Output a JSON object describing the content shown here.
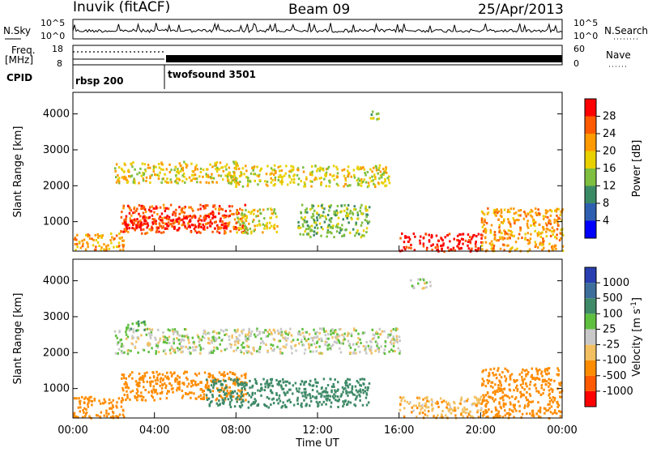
{
  "header": {
    "station": "Inuvik (fitACF)",
    "beam": "Beam 09",
    "date": "25/Apr/2013"
  },
  "summary_panels": {
    "nsky": {
      "label": "N.Sky",
      "ticks": [
        "10^5",
        "10^0"
      ]
    },
    "nsearch": {
      "label": "N.Search",
      "ticks": [
        "10^5",
        "10^0"
      ]
    },
    "freq": {
      "label_line1": "Freq.",
      "label_line2": "[MHz]",
      "ticks": [
        "18",
        "8"
      ]
    },
    "nave": {
      "label": "Nave",
      "ticks": [
        "60",
        "0"
      ]
    },
    "cpid": {
      "label": "CPID",
      "segments": [
        {
          "name": "rbsp 200",
          "start_hour": 0.0,
          "end_hour": 4.5
        },
        {
          "name": "twofsound 3501",
          "start_hour": 4.5,
          "end_hour": 24.0
        }
      ]
    }
  },
  "time_axis": {
    "label": "Time UT",
    "ticks": [
      "00:00",
      "04:00",
      "08:00",
      "12:00",
      "16:00",
      "20:00",
      "00:00"
    ]
  },
  "range_axis": {
    "label": "Slant Range [km]",
    "ticks": [
      "1000",
      "2000",
      "3000",
      "4000"
    ],
    "ylim": [
      180,
      4600
    ]
  },
  "power_colorbar": {
    "label": "Power [dB]",
    "ticks": [
      "4",
      "8",
      "12",
      "16",
      "20",
      "24",
      "28"
    ],
    "colors": [
      "#0000ff",
      "#2f5fb0",
      "#3b8a66",
      "#7fbf3f",
      "#e9d000",
      "#ff9a00",
      "#ff5a00",
      "#ff0000"
    ]
  },
  "velocity_colorbar": {
    "label": "Velocity [m s",
    "label_exponent": "-1",
    "label_close": "]",
    "ticks": [
      "1000",
      "500",
      "100",
      "25",
      "-25",
      "-100",
      "-500",
      "-1000"
    ],
    "colors": [
      "#2a3fb0",
      "#3e6e9c",
      "#3f8a68",
      "#5fbf3f",
      "#c8c8c8",
      "#f2c060",
      "#ff8c00",
      "#ff5a00",
      "#ff0000"
    ]
  },
  "chart_data": [
    {
      "type": "heatmap",
      "title": "",
      "xlabel": "Time UT",
      "ylabel": "Slant Range [km]",
      "xlim": [
        0,
        24
      ],
      "ylim": [
        180,
        4600
      ],
      "quantity": "Power [dB]",
      "regions": [
        {
          "t0": 0.0,
          "t1": 2.5,
          "r0": 200,
          "r1": 700,
          "value": 20
        },
        {
          "t0": 2.3,
          "t1": 8.5,
          "r0": 700,
          "r1": 1500,
          "value": 24
        },
        {
          "t0": 2.5,
          "t1": 7.5,
          "r0": 800,
          "r1": 1200,
          "value": 28
        },
        {
          "t0": 2.0,
          "t1": 8.0,
          "r0": 2100,
          "r1": 2700,
          "value": 16
        },
        {
          "t0": 7.5,
          "t1": 15.5,
          "r0": 2000,
          "r1": 2600,
          "value": 16
        },
        {
          "t0": 8.0,
          "t1": 10.0,
          "r0": 700,
          "r1": 1400,
          "value": 16
        },
        {
          "t0": 11.0,
          "t1": 14.5,
          "r0": 600,
          "r1": 1500,
          "value": 12
        },
        {
          "t0": 16.0,
          "t1": 20.0,
          "r0": 200,
          "r1": 700,
          "value": 28
        },
        {
          "t0": 20.0,
          "t1": 24.0,
          "r0": 200,
          "r1": 1400,
          "value": 20
        },
        {
          "t0": 14.5,
          "t1": 15.0,
          "r0": 3800,
          "r1": 4100,
          "value": 12
        }
      ]
    },
    {
      "type": "heatmap",
      "title": "",
      "xlabel": "Time UT",
      "ylabel": "Slant Range [km]",
      "xlim": [
        0,
        24
      ],
      "ylim": [
        180,
        4600
      ],
      "quantity": "Velocity [m s-1]",
      "regions": [
        {
          "t0": 0.0,
          "t1": 2.5,
          "r0": 200,
          "r1": 800,
          "value": -300
        },
        {
          "t0": 2.3,
          "t1": 8.5,
          "r0": 700,
          "r1": 1500,
          "value": -300
        },
        {
          "t0": 2.0,
          "t1": 16.0,
          "r0": 2000,
          "r1": 2700,
          "value": 0
        },
        {
          "t0": 2.5,
          "t1": 3.5,
          "r0": 2600,
          "r1": 2900,
          "value": 80
        },
        {
          "t0": 6.5,
          "t1": 14.5,
          "r0": 500,
          "r1": 1300,
          "value": 200
        },
        {
          "t0": 16.0,
          "t1": 20.0,
          "r0": 200,
          "r1": 800,
          "value": -80
        },
        {
          "t0": 20.0,
          "t1": 24.0,
          "r0": 200,
          "r1": 1600,
          "value": -400
        },
        {
          "t0": 16.5,
          "t1": 17.5,
          "r0": 3800,
          "r1": 4100,
          "value": 0
        }
      ]
    }
  ]
}
